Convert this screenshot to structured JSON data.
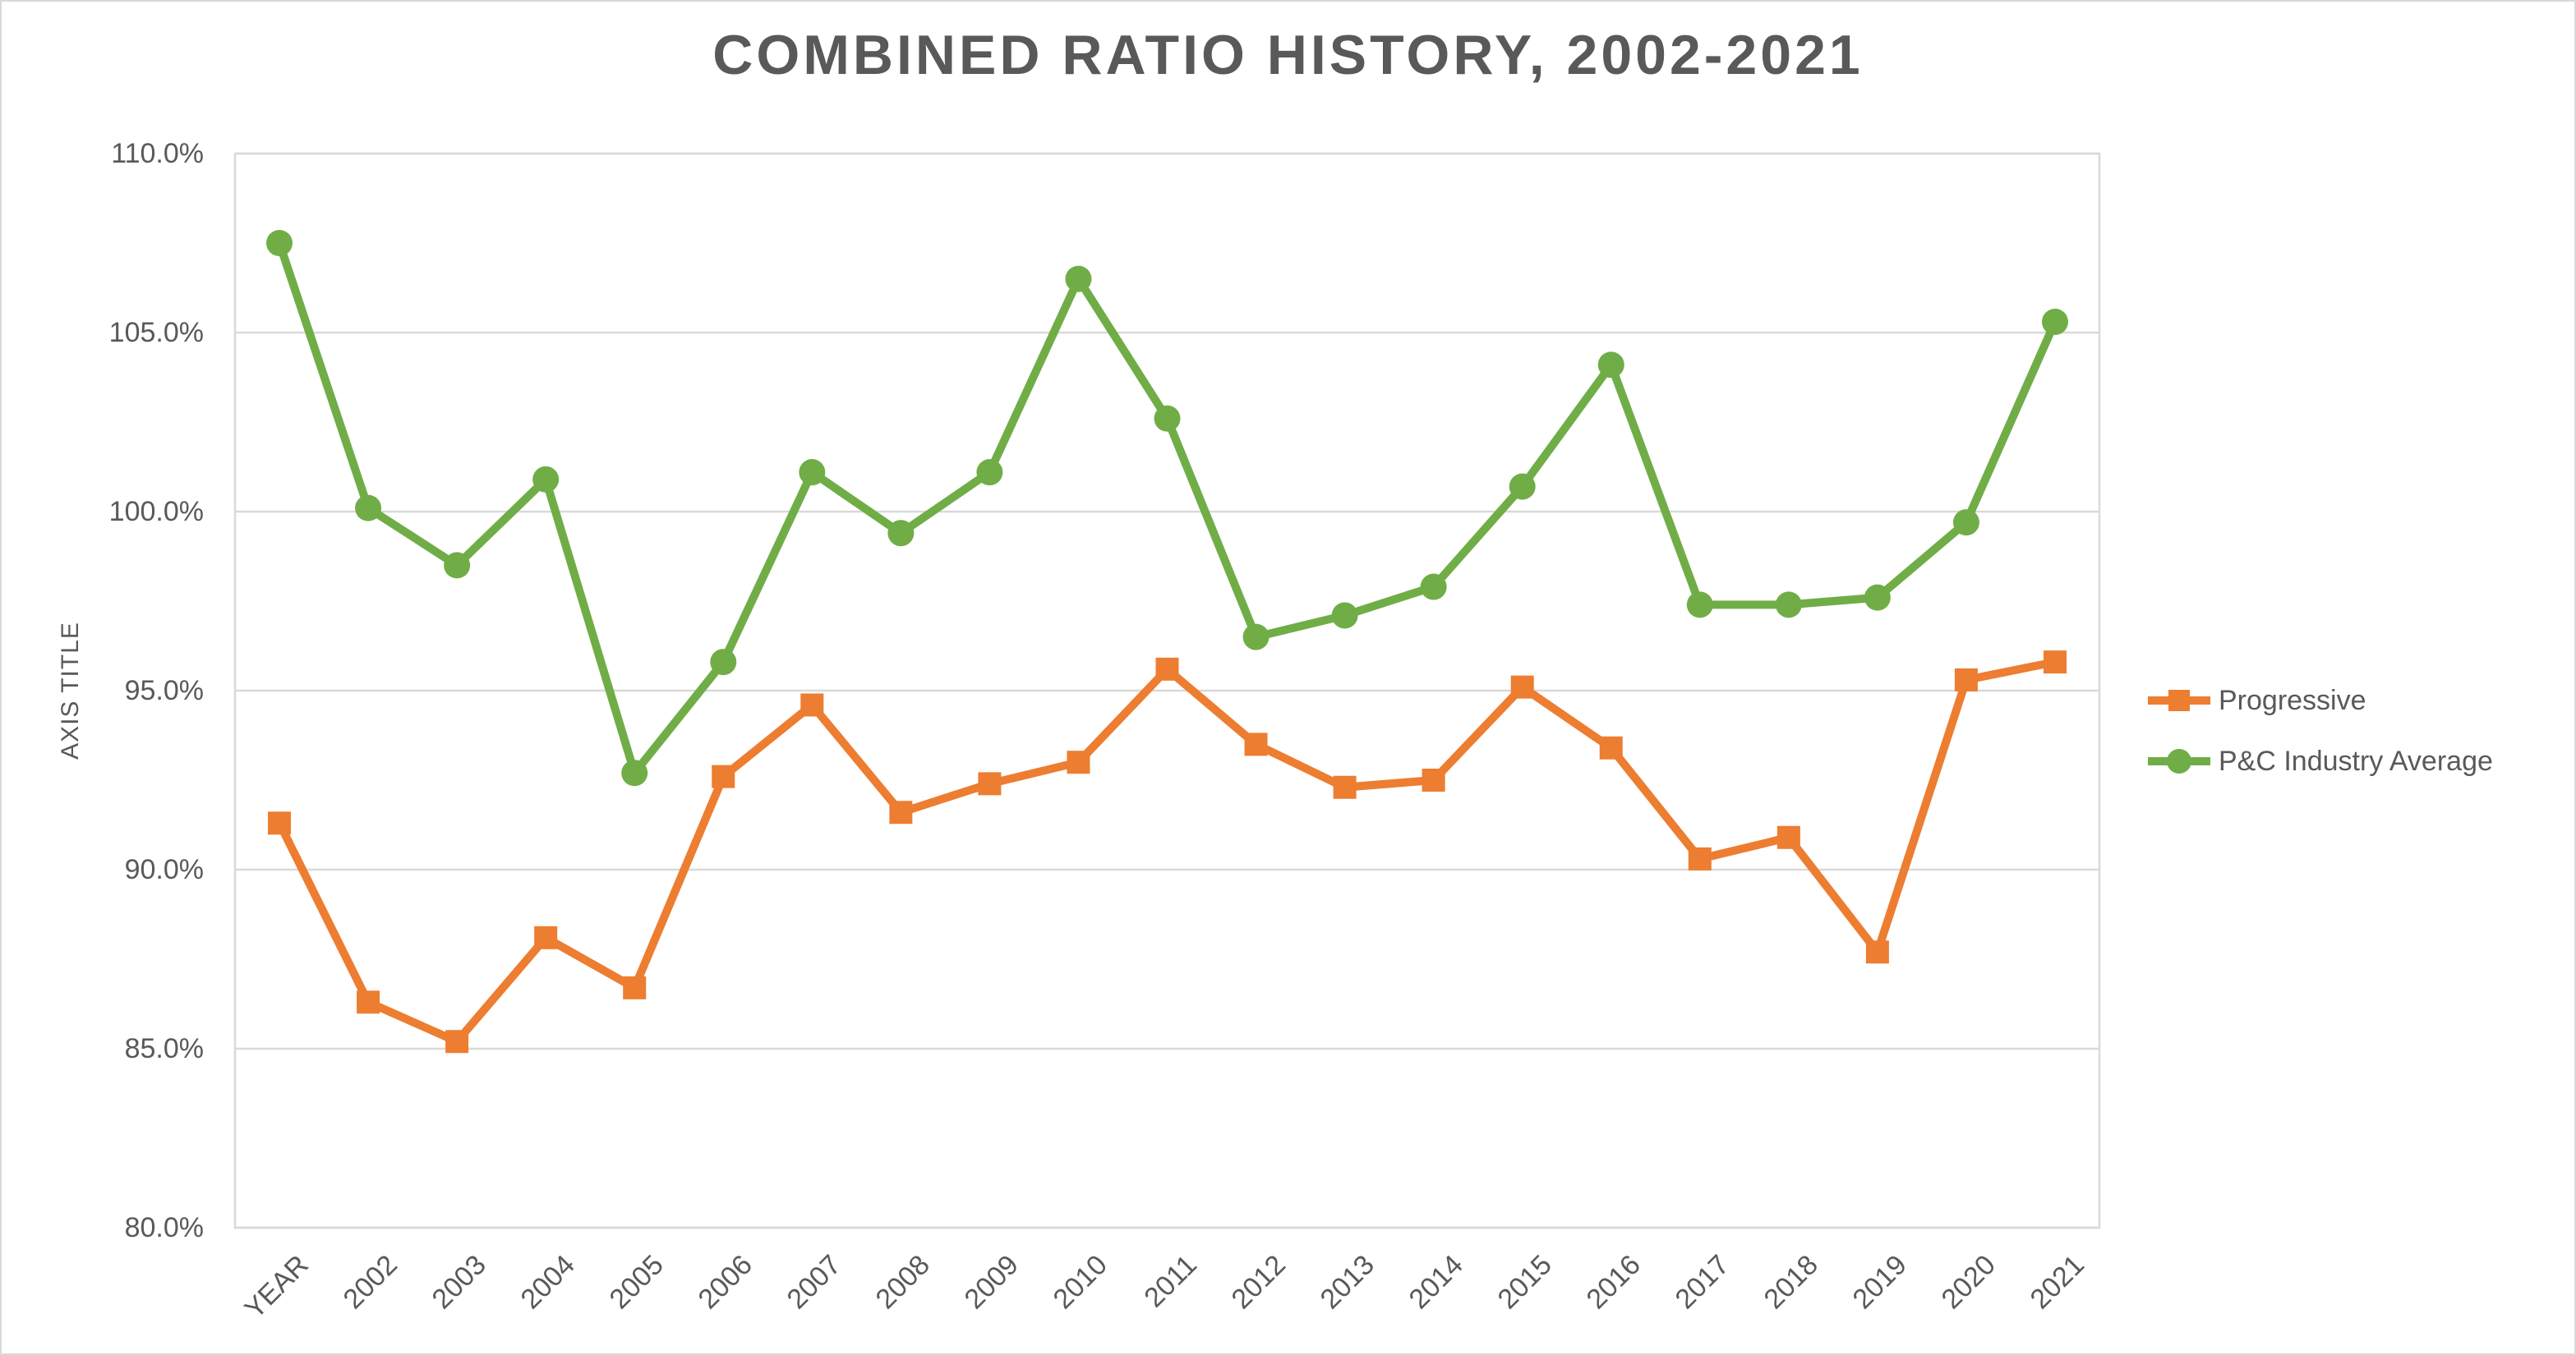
{
  "chart_data": {
    "type": "line",
    "title": "COMBINED RATIO HISTORY, 2002-2021",
    "ylabel": "AXIS TITLE",
    "xlabel": "",
    "categories": [
      "YEAR",
      "2002",
      "2003",
      "2004",
      "2005",
      "2006",
      "2007",
      "2008",
      "2009",
      "2010",
      "2011",
      "2012",
      "2013",
      "2014",
      "2015",
      "2016",
      "2017",
      "2018",
      "2019",
      "2020",
      "2021"
    ],
    "series": [
      {
        "name": "Progressive",
        "marker": "square",
        "color": "#ED7D31",
        "values": [
          91.3,
          86.3,
          85.2,
          88.1,
          86.7,
          92.6,
          94.6,
          91.6,
          92.4,
          93.0,
          95.6,
          93.5,
          92.3,
          92.5,
          95.1,
          93.4,
          90.3,
          90.9,
          87.7,
          95.3,
          95.8
        ]
      },
      {
        "name": "P&C Industry Average",
        "marker": "circle",
        "color": "#70AD47",
        "values": [
          107.5,
          100.1,
          98.5,
          100.9,
          92.7,
          95.8,
          101.1,
          99.4,
          101.1,
          106.5,
          102.6,
          96.5,
          97.1,
          97.9,
          100.7,
          104.1,
          97.4,
          97.4,
          97.6,
          99.7,
          105.3
        ]
      }
    ],
    "y_axis": {
      "min": 80,
      "max": 110,
      "step": 5,
      "tick_format": "percent_one_decimal",
      "tick_labels": [
        "80.0%",
        "85.0%",
        "90.0%",
        "95.0%",
        "100.0%",
        "105.0%",
        "110.0%"
      ]
    },
    "grid": "horizontal",
    "gridline_color": "#d9d9d9",
    "plot_border_color": "#d9d9d9",
    "text_color": "#595959",
    "legend_position": "right",
    "legend": [
      "Progressive",
      "P&C Industry Average"
    ]
  }
}
